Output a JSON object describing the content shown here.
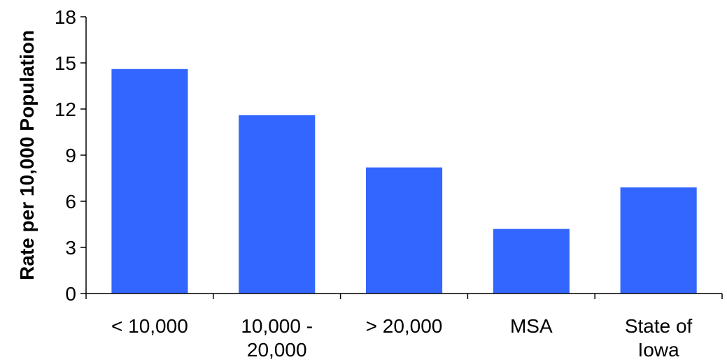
{
  "chart_data": {
    "type": "bar",
    "title": "",
    "xlabel": "",
    "ylabel": "Rate per 10,000 Population",
    "categories": [
      [
        "< 10,000"
      ],
      [
        "10,000 -",
        "20,000"
      ],
      [
        "> 20,000"
      ],
      [
        "MSA"
      ],
      [
        "State of",
        "Iowa"
      ]
    ],
    "values": [
      14.6,
      11.6,
      8.2,
      4.2,
      6.9
    ],
    "ylim": [
      0,
      18
    ],
    "yticks": [
      0,
      3,
      6,
      9,
      12,
      15,
      18
    ],
    "grid": false,
    "legend": "none",
    "bar_color": "#3366FF",
    "axis_color": "#000000"
  }
}
